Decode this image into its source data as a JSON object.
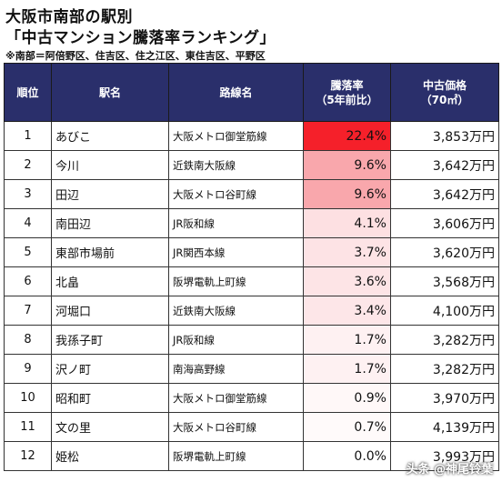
{
  "header": {
    "title_line1": "大阪市南部の駅別",
    "title_line2": "「中古マンション騰落率ランキング」",
    "note": "※南部＝阿倍野区、住吉区、住之江区、東住吉区、平野区"
  },
  "columns": {
    "rank": "順位",
    "station": "駅名",
    "line": "路線名",
    "rate_l1": "騰落率",
    "rate_l2": "（5年前比）",
    "price_l1": "中古価格",
    "price_l2": "（70㎡）"
  },
  "rows": [
    {
      "rank": "1",
      "station": "あびこ",
      "line": "大阪メトロ御堂筋線",
      "rate": "22.4%",
      "rate_color": "#f5202a",
      "price": "3,853万円"
    },
    {
      "rank": "2",
      "station": "今川",
      "line": "近鉄南大阪線",
      "rate": "9.6%",
      "rate_color": "#f9a7ac",
      "price": "3,642万円"
    },
    {
      "rank": "3",
      "station": "田辺",
      "line": "大阪メトロ谷町線",
      "rate": "9.6%",
      "rate_color": "#f9a7ac",
      "price": "3,642万円"
    },
    {
      "rank": "4",
      "station": "南田辺",
      "line": "JR阪和線",
      "rate": "4.1%",
      "rate_color": "#fde0e2",
      "price": "3,606万円"
    },
    {
      "rank": "5",
      "station": "東部市場前",
      "line": "JR関西本線",
      "rate": "3.7%",
      "rate_color": "#fde3e5",
      "price": "3,620万円"
    },
    {
      "rank": "6",
      "station": "北畠",
      "line": "阪堺電軌上町線",
      "rate": "3.6%",
      "rate_color": "#fde4e6",
      "price": "3,568万円"
    },
    {
      "rank": "7",
      "station": "河堀口",
      "line": "近鉄南大阪線",
      "rate": "3.4%",
      "rate_color": "#fde6e8",
      "price": "4,100万円"
    },
    {
      "rank": "8",
      "station": "我孫子町",
      "line": "JR阪和線",
      "rate": "1.7%",
      "rate_color": "#fef1f2",
      "price": "3,282万円"
    },
    {
      "rank": "9",
      "station": "沢ノ町",
      "line": "南海高野線",
      "rate": "1.7%",
      "rate_color": "#fef1f2",
      "price": "3,282万円"
    },
    {
      "rank": "10",
      "station": "昭和町",
      "line": "大阪メトロ御堂筋線",
      "rate": "0.9%",
      "rate_color": "#fff8f8",
      "price": "3,970万円"
    },
    {
      "rank": "11",
      "station": "文の里",
      "line": "大阪メトロ谷町線",
      "rate": "0.7%",
      "rate_color": "#fffafa",
      "price": "4,139万円"
    },
    {
      "rank": "12",
      "station": "姫松",
      "line": "阪堺電軌上町線",
      "rate": "0.0%",
      "rate_color": "#ffffff",
      "price": "3,993万円"
    }
  ],
  "watermark": "头条 @神尾铃葉"
}
